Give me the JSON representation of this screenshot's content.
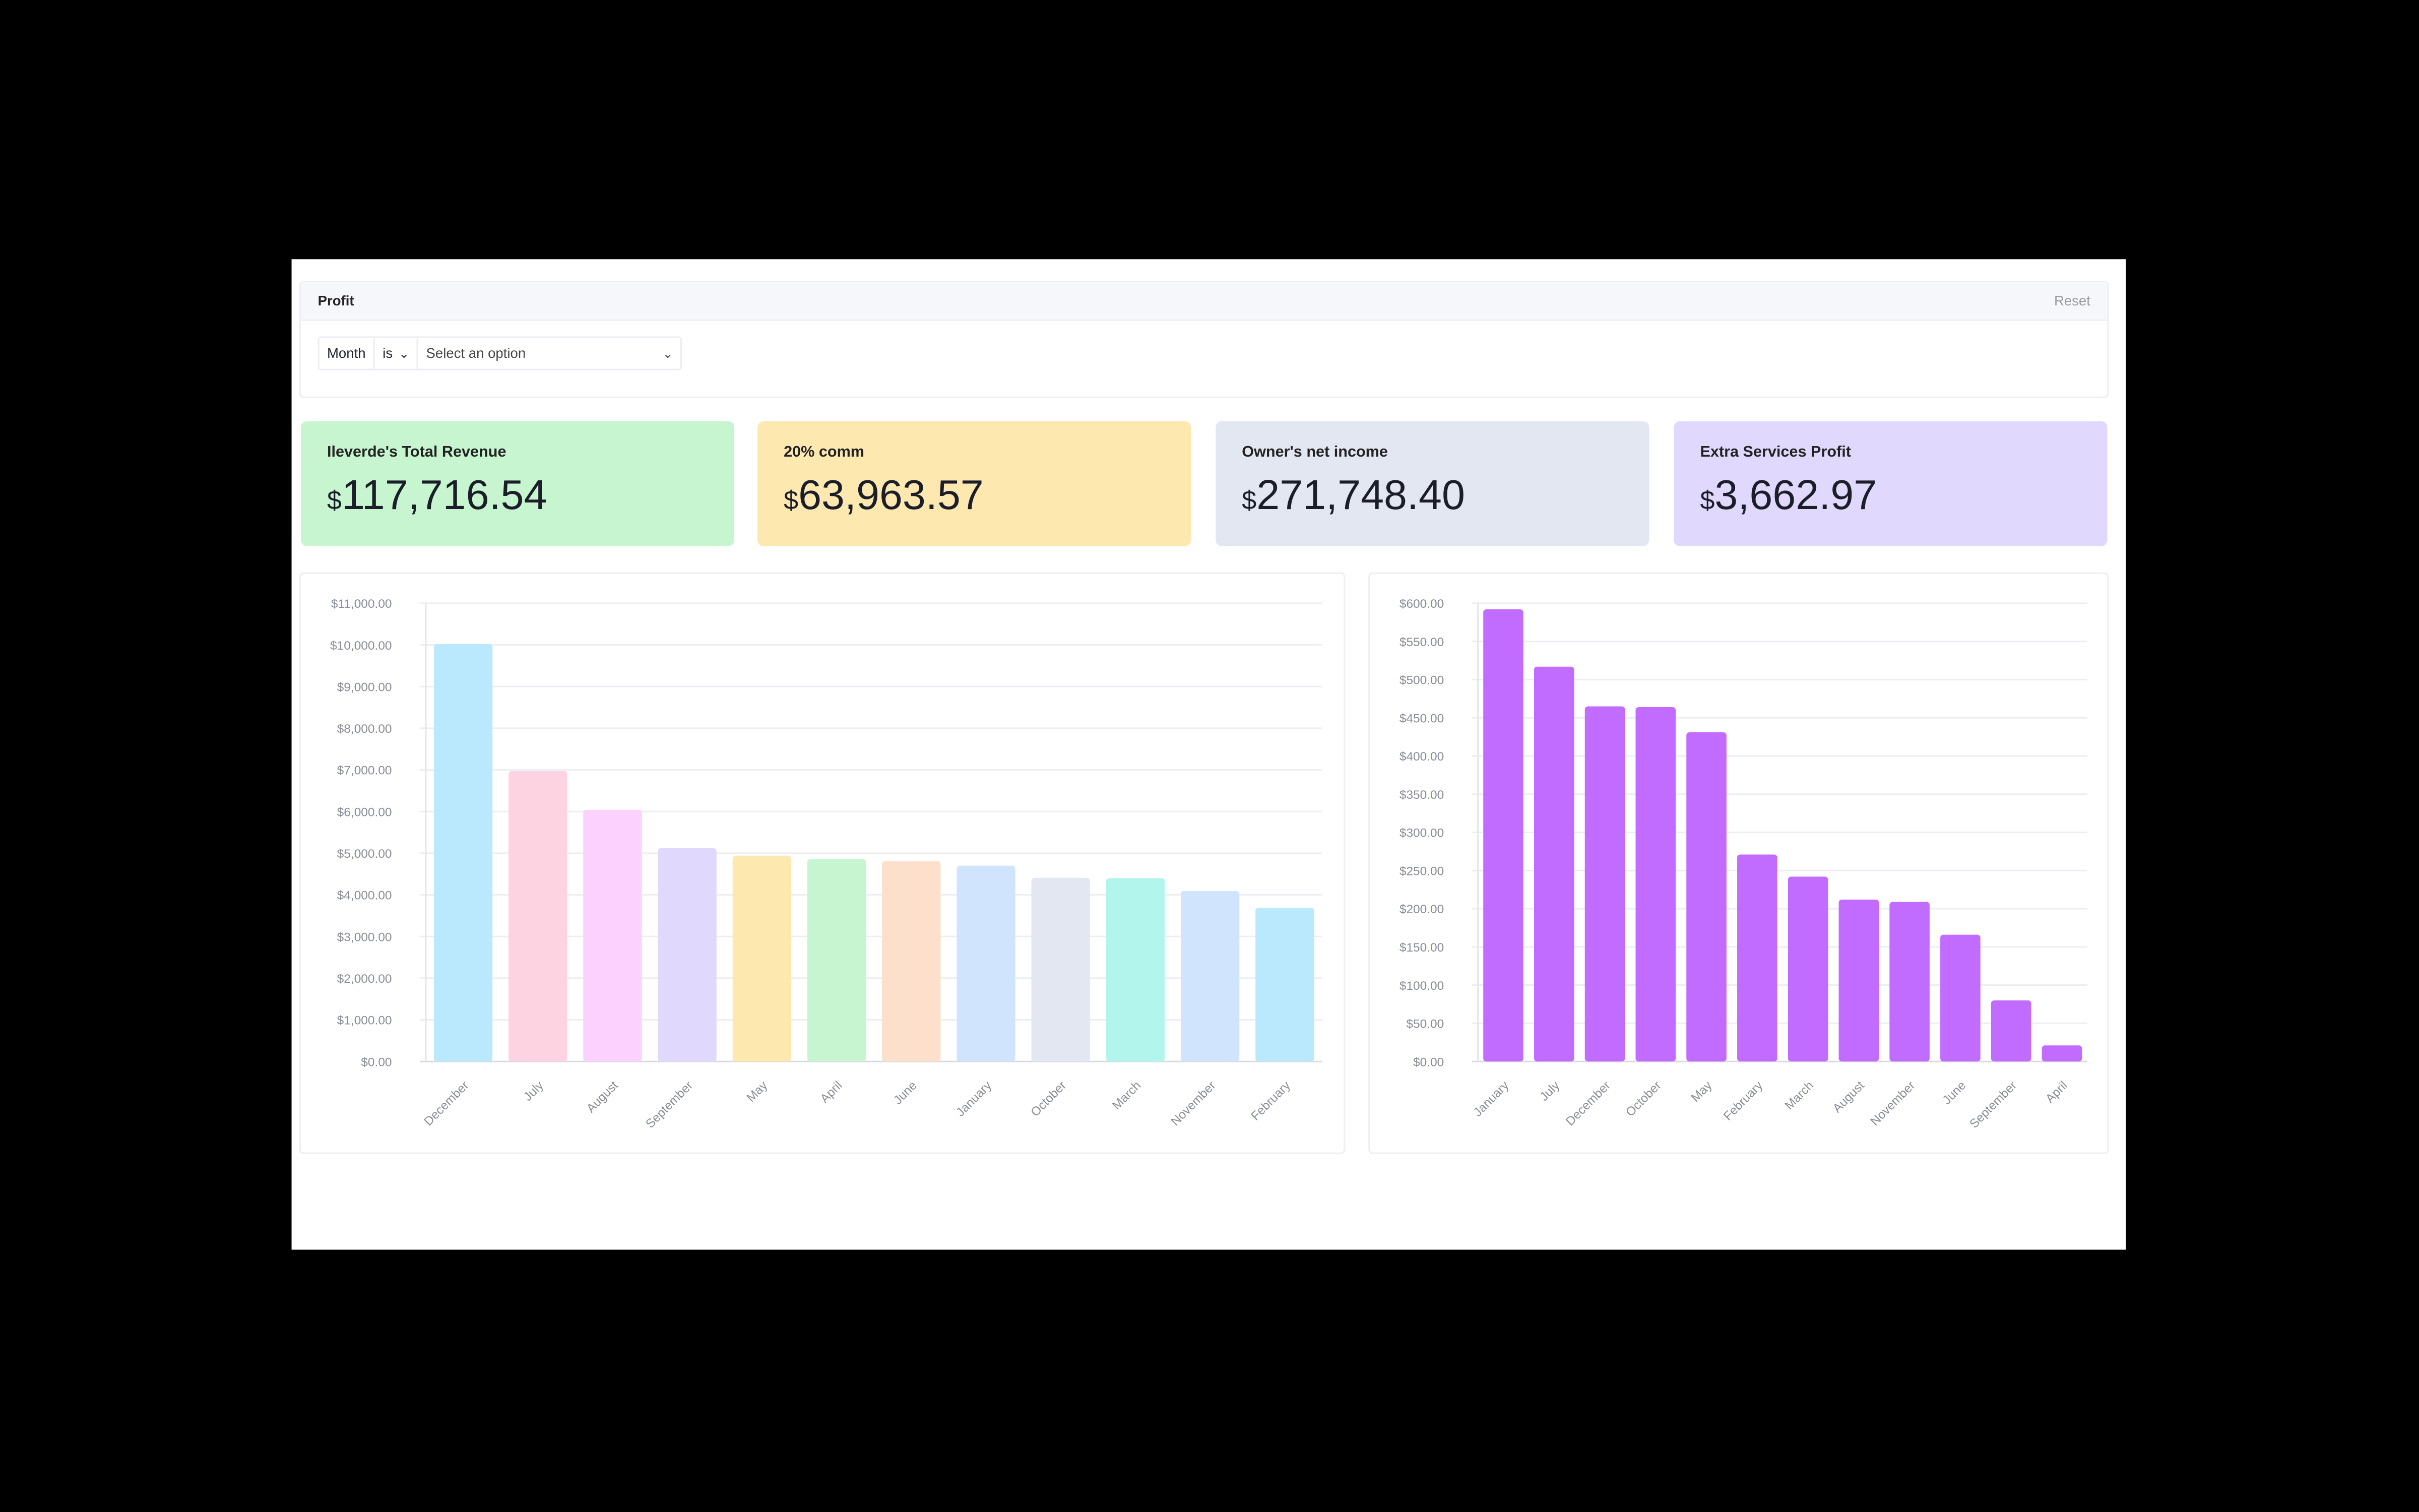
{
  "filter": {
    "title": "Profit",
    "reset_label": "Reset",
    "field": "Month",
    "operator": "is",
    "value_placeholder": "Select an option"
  },
  "kpis": [
    {
      "label": "Ileverde's Total Revenue",
      "currency": "$",
      "value": "117,716.54",
      "color": "#c6f5d0"
    },
    {
      "label": "20% comm",
      "currency": "$",
      "value": "63,963.57",
      "color": "#fde8b0"
    },
    {
      "label": "Owner's net income",
      "currency": "$",
      "value": "271,748.40",
      "color": "#e3e7f2"
    },
    {
      "label": "Extra Services Profit",
      "currency": "$",
      "value": "3,662.97",
      "color": "#e1d9fd"
    }
  ],
  "chart_data": [
    {
      "type": "bar",
      "title": "",
      "xlabel": "",
      "ylabel": "",
      "ylim": [
        0,
        11000
      ],
      "yticks": [
        "$0.00",
        "$1,000.00",
        "$2,000.00",
        "$3,000.00",
        "$4,000.00",
        "$5,000.00",
        "$6,000.00",
        "$7,000.00",
        "$8,000.00",
        "$9,000.00",
        "$10,000.00",
        "$11,000.00"
      ],
      "categories": [
        "December",
        "July",
        "August",
        "September",
        "May",
        "April",
        "June",
        "January",
        "October",
        "March",
        "November",
        "February"
      ],
      "values": [
        10020,
        6970,
        6040,
        5120,
        4940,
        4860,
        4810,
        4700,
        4410,
        4400,
        4090,
        3690
      ],
      "colors": [
        "#bae9fd",
        "#fdd3e1",
        "#fdd1fd",
        "#e1d9fd",
        "#fde8b0",
        "#c6f5d0",
        "#fde0cc",
        "#d1e4fd",
        "#e3e7f2",
        "#b2f5ed",
        "#d1e4fd",
        "#bae9fd"
      ],
      "grid": true
    },
    {
      "type": "bar",
      "title": "",
      "xlabel": "",
      "ylabel": "",
      "ylim": [
        0,
        600
      ],
      "yticks": [
        "$0.00",
        "$50.00",
        "$100.00",
        "$150.00",
        "$200.00",
        "$250.00",
        "$300.00",
        "$350.00",
        "$400.00",
        "$450.00",
        "$500.00",
        "$550.00",
        "$600.00"
      ],
      "categories": [
        "January",
        "July",
        "December",
        "October",
        "May",
        "February",
        "March",
        "August",
        "November",
        "June",
        "September",
        "April"
      ],
      "values": [
        592,
        517,
        465,
        464,
        431,
        271,
        242,
        212,
        209,
        166,
        80,
        21
      ],
      "colors": [
        "#c26bff"
      ],
      "grid": true
    }
  ]
}
